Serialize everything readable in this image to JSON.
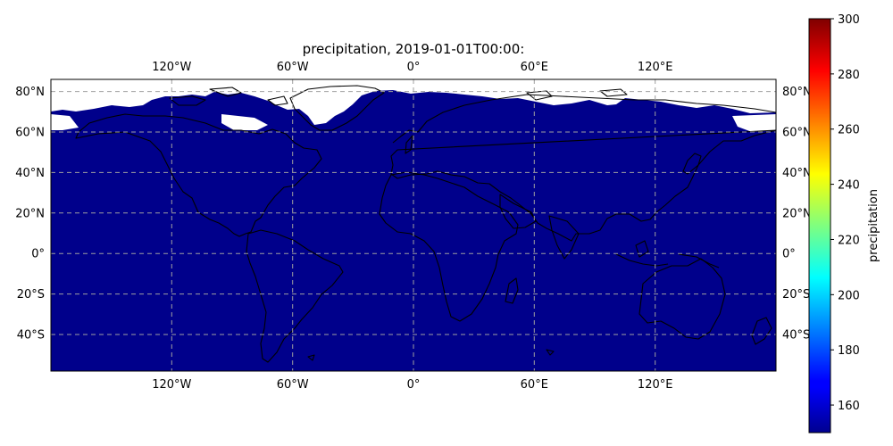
{
  "chart_data": {
    "type": "heatmap",
    "title": "precipitation, 2019-01-01T00:00:",
    "projection": "PlateCarree",
    "variable": "precipitation",
    "lon_range": [
      -180,
      180
    ],
    "lat_range": [
      -58,
      86
    ],
    "field_color": "#00008b",
    "missing_color": "#ffffff",
    "gridlines": true,
    "x_ticks": [
      {
        "value": -120,
        "label": "120°W"
      },
      {
        "value": -60,
        "label": "60°W"
      },
      {
        "value": 0,
        "label": "0°"
      },
      {
        "value": 60,
        "label": "60°E"
      },
      {
        "value": 120,
        "label": "120°E"
      }
    ],
    "y_ticks": [
      {
        "value": 80,
        "label": "80°N"
      },
      {
        "value": 60,
        "label": "60°N"
      },
      {
        "value": 40,
        "label": "40°N"
      },
      {
        "value": 20,
        "label": "20°N"
      },
      {
        "value": 0,
        "label": "0°"
      },
      {
        "value": -20,
        "label": "20°S"
      },
      {
        "value": -40,
        "label": "40°S"
      }
    ],
    "colorbar": {
      "label": "precipitation",
      "colormap": "jet",
      "vmin": 150,
      "vmax": 300,
      "ticks": [
        160,
        180,
        200,
        220,
        240,
        260,
        280,
        300
      ],
      "tick_labels": [
        "160",
        "180",
        "200",
        "220",
        "240",
        "260",
        "280",
        "300"
      ]
    }
  }
}
